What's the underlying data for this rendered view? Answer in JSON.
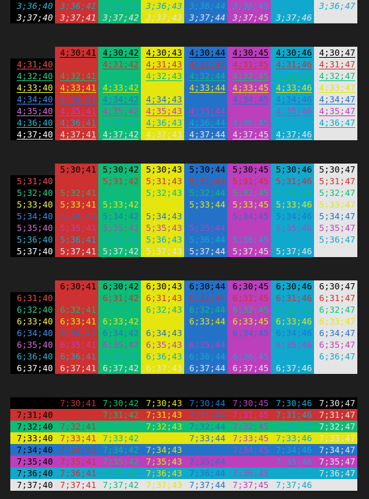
{
  "palette": {
    "40": "#000000",
    "41": "#cd3131",
    "42": "#0dbc79",
    "43": "#e5e510",
    "44": "#2472c8",
    "45": "#bc3fbc",
    "46": "#11a8cd",
    "47": "#e5e5e5",
    "fg30": "#000000",
    "fg31": "#cd3131",
    "fg32": "#0dbc79",
    "fg33": "#e5e510",
    "fg34": "#2472c8",
    "fg35": "#bc3fbc",
    "fg36": "#11a8cd",
    "fg37": "#e5e5e5",
    "bright30": "#666666",
    "bright31": "#f14c4c",
    "bright32": "#23d18b",
    "bright33": "#f5f543",
    "bright34": "#3b8eea",
    "bright35": "#d670d6",
    "bright36": "#29b8db",
    "bright37": "#ffffff"
  },
  "blocks": [
    {
      "attr": "3",
      "style": "italic",
      "rows": [
        {
          "fg": "36",
          "row_label": "3;36;40",
          "cells": [
            "3;36;41",
            "3;36;42",
            "3;36;43",
            "3;36;44",
            "3;36;45",
            "",
            "3;36;47"
          ]
        },
        {
          "fg": "37",
          "row_label": "3;37;40",
          "cells": [
            "3;37;41",
            "3;37;42",
            "3;37;43",
            "3;37;44",
            "3;37;45",
            "3;37;46",
            ""
          ]
        }
      ]
    },
    {
      "attr": "4",
      "style": "underline",
      "header": [
        "",
        "4;30;41",
        "4;30;42",
        "4;30;43",
        "4;30;44",
        "4;30;45",
        "4;30;46",
        "4;30;47"
      ],
      "rows": [
        {
          "fg": "31",
          "row_label": "4;31;40",
          "cells": [
            "",
            "4;31;42",
            "4;31;43",
            "4;31;44",
            "4;31;45",
            "4;31;46",
            "4;31;47"
          ]
        },
        {
          "fg": "32",
          "row_label": "4;32;40",
          "cells": [
            "4;32;41",
            "",
            "4;32;43",
            "4;32;44",
            "4;32;45",
            "4;32;46",
            "4;32;47"
          ]
        },
        {
          "fg": "33",
          "row_label": "4;33;40",
          "cells": [
            "4;33;41",
            "4;33;42",
            "",
            "4;33;44",
            "4;33;45",
            "4;33;46",
            "4;33;47"
          ]
        },
        {
          "fg": "34",
          "row_label": "4;34;40",
          "cells": [
            "4;34;41",
            "4;34;42",
            "4;34;43",
            "",
            "4;34;45",
            "4;34;46",
            "4;34;47"
          ]
        },
        {
          "fg": "35",
          "row_label": "4;35;40",
          "cells": [
            "4;35;41",
            "4;35;42",
            "4;35;43",
            "4;35;44",
            "",
            "4;35;46",
            "4;35;47"
          ]
        },
        {
          "fg": "36",
          "row_label": "4;36;40",
          "cells": [
            "4;36;41",
            "4;36;42",
            "4;36;43",
            "4;36;44",
            "4;36;45",
            "",
            "4;36;47"
          ]
        },
        {
          "fg": "37",
          "row_label": "4;37;40",
          "cells": [
            "4;37;41",
            "4;37;42",
            "4;37;43",
            "4;37;44",
            "4;37;45",
            "4;37;46",
            ""
          ]
        }
      ]
    },
    {
      "attr": "5",
      "style": "blink",
      "header": [
        "",
        "5;30;41",
        "5;30;42",
        "5;30;43",
        "5;30;44",
        "5;30;45",
        "5;30;46",
        "5;30;47"
      ],
      "rows": [
        {
          "fg": "31",
          "row_label": "5;31;40",
          "cells": [
            "",
            "5;31;42",
            "5;31;43",
            "5;31;44",
            "5;31;45",
            "5;31;46",
            "5;31;47"
          ]
        },
        {
          "fg": "32",
          "row_label": "5;32;40",
          "cells": [
            "5;32;41",
            "",
            "5;32;43",
            "5;32;44",
            "5;32;45",
            "5;32;46",
            "5;32;47"
          ]
        },
        {
          "fg": "33",
          "row_label": "5;33;40",
          "cells": [
            "5;33;41",
            "5;33;42",
            "",
            "5;33;44",
            "5;33;45",
            "5;33;46",
            "5;33;47"
          ]
        },
        {
          "fg": "34",
          "row_label": "5;34;40",
          "cells": [
            "5;34;41",
            "5;34;42",
            "5;34;43",
            "",
            "5;34;45",
            "5;34;46",
            "5;34;47"
          ]
        },
        {
          "fg": "35",
          "row_label": "5;35;40",
          "cells": [
            "5;35;41",
            "5;35;42",
            "5;35;43",
            "5;35;44",
            "",
            "5;35;46",
            "5;35;47"
          ]
        },
        {
          "fg": "36",
          "row_label": "5;36;40",
          "cells": [
            "5;36;41",
            "5;36;42",
            "5;36;43",
            "5;36;44",
            "5;36;45",
            "",
            "5;36;47"
          ]
        },
        {
          "fg": "37",
          "row_label": "5;37;40",
          "cells": [
            "5;37;41",
            "5;37;42",
            "5;37;43",
            "5;37;44",
            "5;37;45",
            "5;37;46",
            ""
          ]
        }
      ]
    },
    {
      "attr": "6",
      "style": "rapid-blink",
      "header": [
        "",
        "6;30;41",
        "6;30;42",
        "6;30;43",
        "6;30;44",
        "6;30;45",
        "6;30;46",
        "6;30;47"
      ],
      "rows": [
        {
          "fg": "31",
          "row_label": "6;31;40",
          "cells": [
            "",
            "6;31;42",
            "6;31;43",
            "6;31;44",
            "6;31;45",
            "6;31;46",
            "6;31;47"
          ]
        },
        {
          "fg": "32",
          "row_label": "6;32;40",
          "cells": [
            "6;32;41",
            "",
            "6;32;43",
            "6;32;44",
            "6;32;45",
            "6;32;46",
            "6;32;47"
          ]
        },
        {
          "fg": "33",
          "row_label": "6;33;40",
          "cells": [
            "6;33;41",
            "6;33;42",
            "",
            "6;33;44",
            "6;33;45",
            "6;33;46",
            "6;33;47"
          ]
        },
        {
          "fg": "34",
          "row_label": "6;34;40",
          "cells": [
            "6;34;41",
            "6;34;42",
            "6;34;43",
            "",
            "6;34;45",
            "6;34;46",
            "6;34;47"
          ]
        },
        {
          "fg": "35",
          "row_label": "6;35;40",
          "cells": [
            "6;35;41",
            "6;35;42",
            "6;35;43",
            "6;35;44",
            "",
            "6;35;46",
            "6;35;47"
          ]
        },
        {
          "fg": "36",
          "row_label": "6;36;40",
          "cells": [
            "6;36;41",
            "6;36;42",
            "6;36;43",
            "6;36;44",
            "6;36;45",
            "",
            "6;36;47"
          ]
        },
        {
          "fg": "37",
          "row_label": "6;37;40",
          "cells": [
            "6;37;41",
            "6;37;42",
            "6;37;43",
            "6;37;44",
            "6;37;45",
            "6;37;46",
            ""
          ]
        }
      ]
    },
    {
      "attr": "7",
      "style": "reverse",
      "header": [
        "",
        "7;30;41",
        "7;30;42",
        "7;30;43",
        "7;30;44",
        "7;30;45",
        "7;30;46",
        "7;30;47"
      ],
      "rows": [
        {
          "fg": "31",
          "row_label": "7;31;40",
          "cells": [
            "",
            "7;31;42",
            "7;31;43",
            "7;31;44",
            "7;31;45",
            "7;31;46",
            "7;31;47"
          ]
        },
        {
          "fg": "32",
          "row_label": "7;32;40",
          "cells": [
            "7;32;41",
            "",
            "7;32;43",
            "7;32;44",
            "7;32;45",
            "7;32;46",
            "7;32;47"
          ]
        },
        {
          "fg": "33",
          "row_label": "7;33;40",
          "cells": [
            "7;33;41",
            "7;33;42",
            "",
            "7;33;44",
            "7;33;45",
            "7;33;46",
            "7;33;47"
          ]
        },
        {
          "fg": "34",
          "row_label": "7;34;40",
          "cells": [
            "7;34;41",
            "7;34;42",
            "7;34;43",
            "",
            "7;34;45",
            "7;34;46",
            "7;34;47"
          ]
        },
        {
          "fg": "35",
          "row_label": "7;35;40",
          "cells": [
            "7;35;41",
            "7;35;42",
            "7;35;43",
            "7;35;44",
            "",
            "7;35;46",
            "7;35;47"
          ]
        },
        {
          "fg": "36",
          "row_label": "7;36;40",
          "cells": [
            "7;36;41",
            "7;36;42",
            "7;36;43",
            "7;36;44",
            "7;36;45",
            "",
            "7;36;47"
          ]
        },
        {
          "fg": "37",
          "row_label": "7;37;40",
          "cells": [
            "7;37;41",
            "7;37;42",
            "7;37;43",
            "7;37;44",
            "7;37;45",
            "7;37;46",
            ""
          ]
        }
      ]
    }
  ]
}
